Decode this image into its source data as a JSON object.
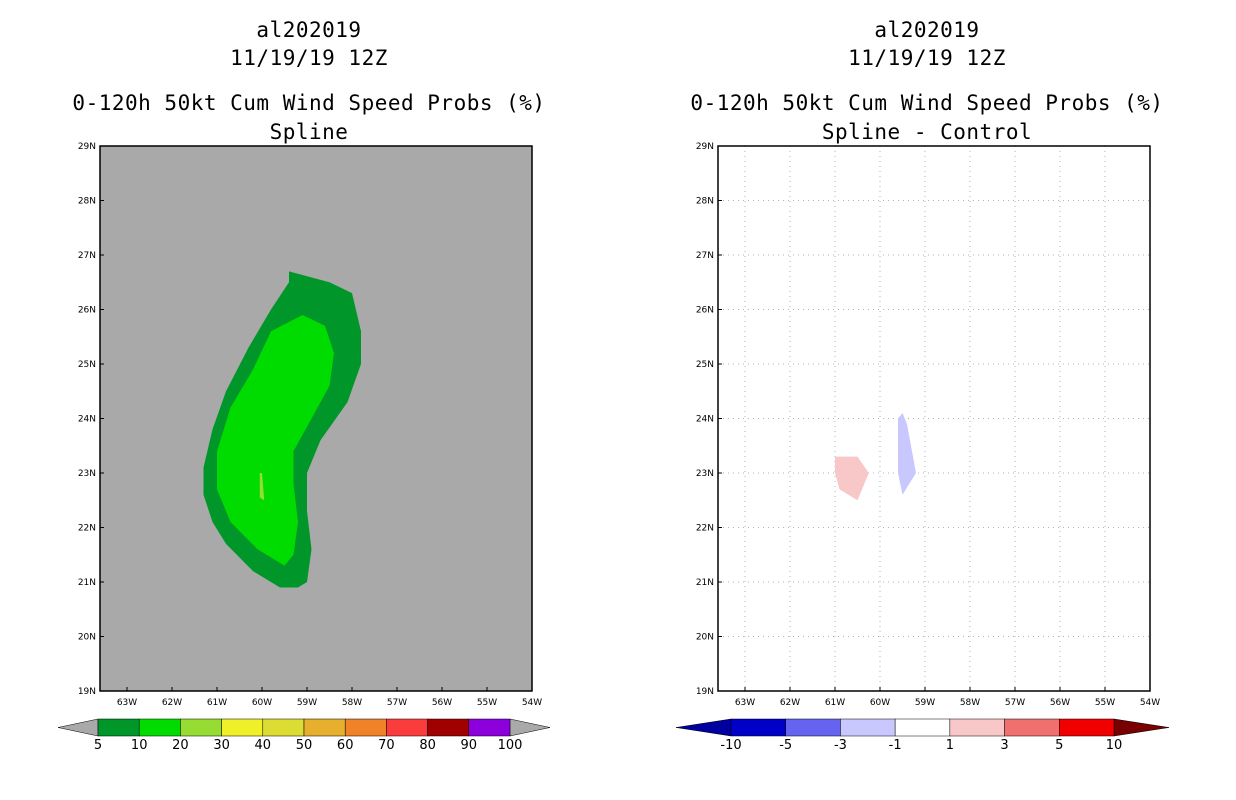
{
  "chart_data": [
    {
      "type": "contour",
      "storm_id": "al202019",
      "datetime": "11/19/19 12Z",
      "title": "0-120h 50kt Cum Wind Speed Probs (%)",
      "subtitle": "Spline",
      "x_ticks": [
        "63W",
        "62W",
        "61W",
        "60W",
        "59W",
        "58W",
        "57W",
        "56W",
        "55W",
        "54W"
      ],
      "y_ticks": [
        "29N",
        "28N",
        "27N",
        "26N",
        "25N",
        "24N",
        "23N",
        "22N",
        "21N",
        "20N",
        "19N"
      ],
      "xlim_deg_w": [
        63.6,
        54
      ],
      "ylim_deg_n": [
        19,
        29
      ],
      "grid": false,
      "background_color": "#a9a9a9",
      "contours": [
        {
          "level": "5-10",
          "color": "#00962a",
          "points": [
            [
              59.4,
              26.7
            ],
            [
              58.5,
              26.5
            ],
            [
              58.0,
              26.3
            ],
            [
              57.8,
              25.6
            ],
            [
              57.8,
              25.0
            ],
            [
              58.1,
              24.3
            ],
            [
              58.7,
              23.6
            ],
            [
              59.0,
              23.0
            ],
            [
              59.0,
              22.3
            ],
            [
              58.9,
              21.6
            ],
            [
              59.0,
              21.0
            ],
            [
              59.2,
              20.9
            ],
            [
              59.6,
              20.9
            ],
            [
              60.2,
              21.2
            ],
            [
              60.8,
              21.7
            ],
            [
              61.1,
              22.1
            ],
            [
              61.3,
              22.6
            ],
            [
              61.3,
              23.1
            ],
            [
              61.1,
              23.8
            ],
            [
              60.8,
              24.5
            ],
            [
              60.3,
              25.3
            ],
            [
              59.8,
              26.0
            ],
            [
              59.4,
              26.5
            ]
          ]
        },
        {
          "level": "10-20",
          "color": "#00dc00",
          "points": [
            [
              59.1,
              25.9
            ],
            [
              58.6,
              25.7
            ],
            [
              58.4,
              25.2
            ],
            [
              58.5,
              24.6
            ],
            [
              58.9,
              24.0
            ],
            [
              59.3,
              23.4
            ],
            [
              59.3,
              22.8
            ],
            [
              59.2,
              22.1
            ],
            [
              59.3,
              21.5
            ],
            [
              59.5,
              21.3
            ],
            [
              60.1,
              21.6
            ],
            [
              60.7,
              22.1
            ],
            [
              61.0,
              22.7
            ],
            [
              61.0,
              23.4
            ],
            [
              60.7,
              24.2
            ],
            [
              60.2,
              24.9
            ],
            [
              59.8,
              25.6
            ]
          ]
        },
        {
          "level": "20-30",
          "color": "#96dc32",
          "points": [
            [
              60.0,
              23.0
            ],
            [
              59.95,
              22.5
            ],
            [
              60.05,
              22.55
            ],
            [
              60.05,
              23.0
            ]
          ]
        }
      ],
      "colorbar": {
        "labels": [
          "5",
          "10",
          "20",
          "30",
          "40",
          "50",
          "60",
          "70",
          "80",
          "90",
          "100"
        ],
        "colors": [
          "#00962a",
          "#00dc00",
          "#96dc32",
          "#f0f028",
          "#dcdc32",
          "#e6af2d",
          "#f08228",
          "#fa3c3c",
          "#a00000",
          "#8c00dc"
        ],
        "end_color": "#a9a9a9"
      }
    },
    {
      "type": "contour",
      "storm_id": "al202019",
      "datetime": "11/19/19 12Z",
      "title": "0-120h 50kt Cum Wind Speed Probs (%)",
      "subtitle": "Spline - Control",
      "x_ticks": [
        "63W",
        "62W",
        "61W",
        "60W",
        "59W",
        "58W",
        "57W",
        "56W",
        "55W",
        "54W"
      ],
      "y_ticks": [
        "29N",
        "28N",
        "27N",
        "26N",
        "25N",
        "24N",
        "23N",
        "22N",
        "21N",
        "20N",
        "19N"
      ],
      "xlim_deg_w": [
        63.6,
        54
      ],
      "ylim_deg_n": [
        19,
        29
      ],
      "grid": true,
      "background_color": "#ffffff",
      "contours": [
        {
          "level": "1-3",
          "color": "#f8c8c8",
          "points": [
            [
              61.0,
              23.3
            ],
            [
              60.5,
              23.3
            ],
            [
              60.25,
              23.0
            ],
            [
              60.5,
              22.5
            ],
            [
              60.9,
              22.7
            ],
            [
              61.0,
              23.0
            ]
          ]
        },
        {
          "level": "-3--1",
          "color": "#c8c8ff",
          "points": [
            [
              59.5,
              24.1
            ],
            [
              59.4,
              23.9
            ],
            [
              59.2,
              23.0
            ],
            [
              59.5,
              22.6
            ],
            [
              59.6,
              23.0
            ],
            [
              59.6,
              24.0
            ]
          ]
        }
      ],
      "colorbar": {
        "labels": [
          "-10",
          "-5",
          "-3",
          "-1",
          "1",
          "3",
          "5",
          "10"
        ],
        "colors": [
          "#0000c8",
          "#6464f0",
          "#c8c8ff",
          "#ffffff",
          "#f8c8c8",
          "#f07070",
          "#f00000"
        ],
        "low_end_color": "#0000a0",
        "high_end_color": "#780000"
      }
    }
  ]
}
